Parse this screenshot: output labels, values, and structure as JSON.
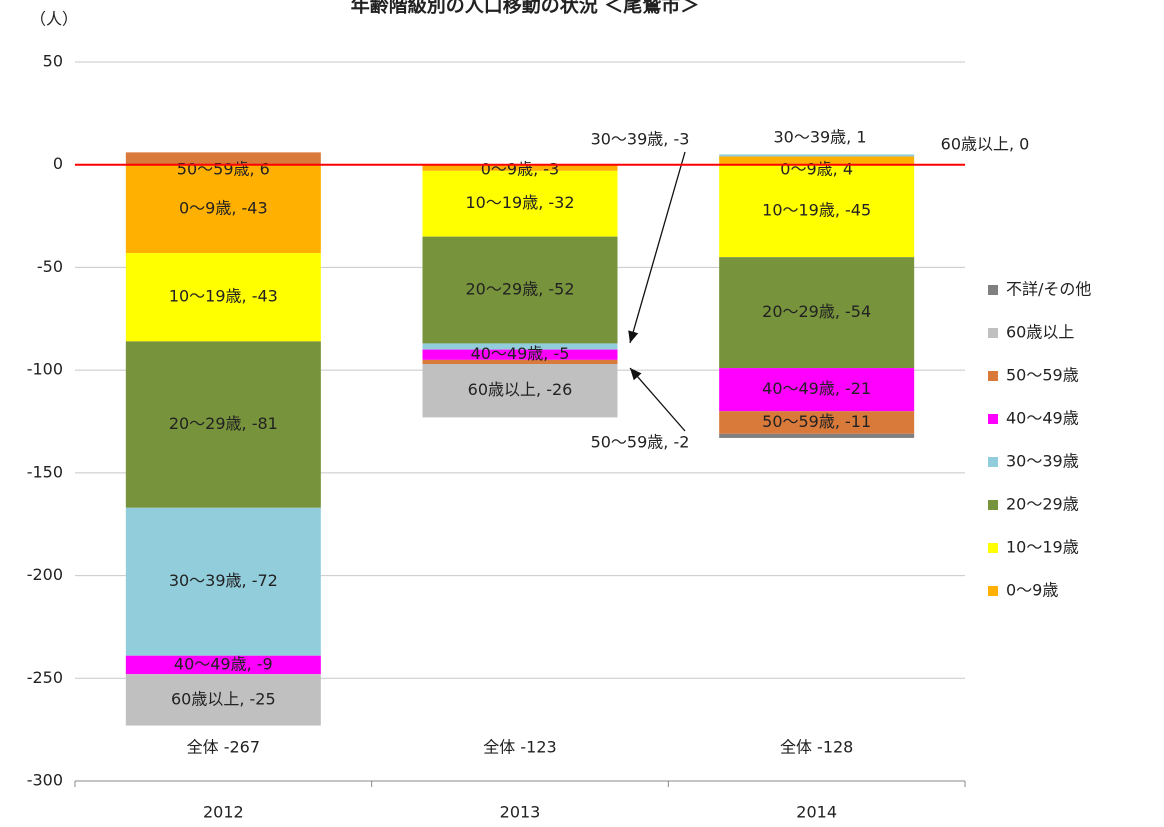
{
  "chart_data": {
    "type": "stacked_bar",
    "title": "年齢階級別の人口移動の状況 ＜尾鷲市＞",
    "y_unit": "（人）",
    "categories": [
      "2012",
      "2013",
      "2014"
    ],
    "ylim": [
      -300,
      50
    ],
    "yticks": [
      -300,
      -250,
      -200,
      -150,
      -100,
      -50,
      0,
      50
    ],
    "grid": true,
    "zero_line_color": "#ff0000",
    "legend": "right",
    "series": [
      {
        "name": "0～9歳",
        "color": "#ffb000",
        "values": [
          -43,
          -3,
          4
        ],
        "value_labels": [
          "0～9歳, -43",
          "0～9歳, -3",
          "0～9歳, 4"
        ]
      },
      {
        "name": "10～19歳",
        "color": "#ffff00",
        "values": [
          -43,
          -32,
          -45
        ],
        "value_labels": [
          "10～19歳, -43",
          "10～19歳, -32",
          "10～19歳, -45"
        ]
      },
      {
        "name": "20～29歳",
        "color": "#77933c",
        "values": [
          -81,
          -52,
          -54
        ],
        "value_labels": [
          "20～29歳, -81",
          "20～29歳, -52",
          "20～29歳, -54"
        ]
      },
      {
        "name": "30～39歳",
        "color": "#92cddc",
        "values": [
          -72,
          -3,
          1
        ],
        "value_labels": [
          "30～39歳, -72",
          "30～39歳, -3",
          "30～39歳, 1"
        ]
      },
      {
        "name": "40～49歳",
        "color": "#ff00ff",
        "values": [
          -9,
          -5,
          -21
        ],
        "value_labels": [
          "40～49歳, -9",
          "40～49歳, -5",
          "40～49歳, -21"
        ]
      },
      {
        "name": "50～59歳",
        "color": "#d9793a",
        "values": [
          6,
          -2,
          -11
        ],
        "value_labels": [
          "50～59歳, 6",
          "50～59歳, -2",
          "50～59歳, -11"
        ]
      },
      {
        "name": "60歳以上",
        "color": "#c0c0c0",
        "values": [
          -25,
          -26,
          0
        ],
        "value_labels": [
          "60歳以上, -25",
          "60歳以上, -26",
          "60歳以上, 0"
        ]
      },
      {
        "name": "不詳/その他",
        "color": "#808080",
        "values": [
          0,
          0,
          -2
        ],
        "value_labels": [
          null,
          null,
          null
        ]
      }
    ],
    "total_labels": [
      "全体 -267",
      "全体 -123",
      "全体 -128"
    ]
  }
}
